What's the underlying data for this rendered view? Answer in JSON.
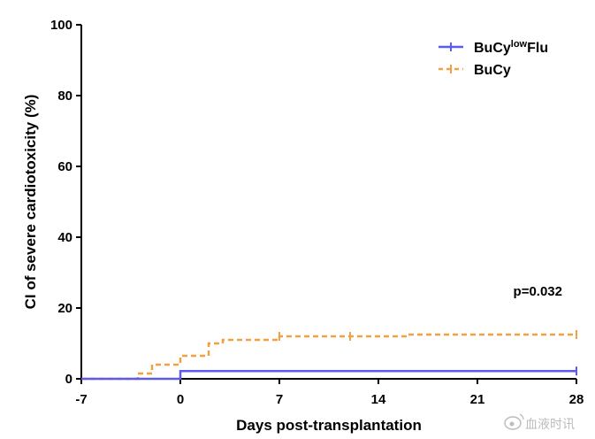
{
  "chart_data": {
    "type": "line",
    "subtype": "step (cumulative incidence)",
    "xlabel": "Days post-transplantation",
    "ylabel": "CI of severe cardiotoxicity (%)",
    "xlim": [
      -7,
      28
    ],
    "ylim": [
      0,
      100
    ],
    "x_ticks": [
      -7,
      0,
      7,
      14,
      21,
      28
    ],
    "y_ticks": [
      0,
      20,
      40,
      60,
      80,
      100
    ],
    "grid": false,
    "legend_position": "top-right",
    "series": [
      {
        "name": "BuCy",
        "name_sup": "low",
        "name_suffix": "Flu",
        "color": "#5b5bef",
        "style": "solid",
        "x": [
          -7,
          0,
          28
        ],
        "y": [
          0,
          2.2,
          2.2
        ],
        "censor_x": [
          28
        ]
      },
      {
        "name": "BuCy",
        "color": "#f4a040",
        "style": "dashed",
        "x": [
          -7,
          -3,
          -2,
          0,
          2,
          3,
          7,
          16,
          28
        ],
        "y": [
          0,
          1.5,
          4,
          6.5,
          10,
          11,
          12,
          12.5,
          12.5
        ],
        "censor_x": [
          7,
          12,
          28
        ]
      }
    ],
    "annotations": [
      {
        "text": "p=0.032",
        "x": 28,
        "y": 23
      }
    ]
  },
  "watermark": {
    "icon": "weibo-icon",
    "text": "血液时讯"
  }
}
